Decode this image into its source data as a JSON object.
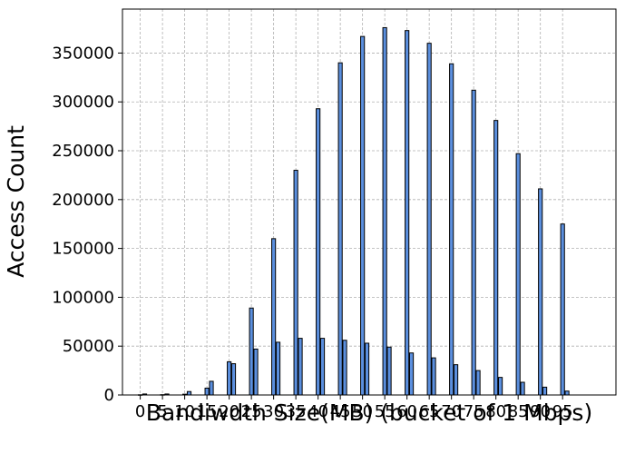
{
  "chart_data": {
    "type": "bar",
    "title": "",
    "xlabel": "Bandiwdth Size(MB) (bucket of 1 Mbps)",
    "ylabel": "Access Count",
    "grid": true,
    "xlim": [
      -4,
      107
    ],
    "ylim": [
      0,
      395000
    ],
    "x_ticks": [
      0,
      5,
      10,
      15,
      20,
      25,
      30,
      35,
      40,
      45,
      50,
      55,
      60,
      65,
      70,
      75,
      80,
      85,
      90,
      95
    ],
    "y_ticks": [
      0,
      50000,
      100000,
      150000,
      200000,
      250000,
      300000,
      350000
    ],
    "x": [
      0,
      1,
      5,
      6,
      10,
      11,
      15,
      16,
      20,
      21,
      25,
      26,
      30,
      31,
      35,
      36,
      40,
      41,
      45,
      46,
      50,
      51,
      55,
      56,
      60,
      61,
      65,
      66,
      70,
      71,
      75,
      76,
      80,
      81,
      85,
      86,
      90,
      91,
      95,
      96
    ],
    "values": [
      200,
      1000,
      300,
      1000,
      800,
      3500,
      7000,
      14000,
      34000,
      32000,
      89000,
      47000,
      160000,
      54000,
      230000,
      58000,
      293000,
      58000,
      340000,
      56000,
      367000,
      53000,
      376000,
      49000,
      373000,
      43000,
      360000,
      38000,
      339000,
      31000,
      312000,
      25000,
      281000,
      18000,
      247000,
      13000,
      211000,
      8000,
      175000,
      4000
    ]
  }
}
